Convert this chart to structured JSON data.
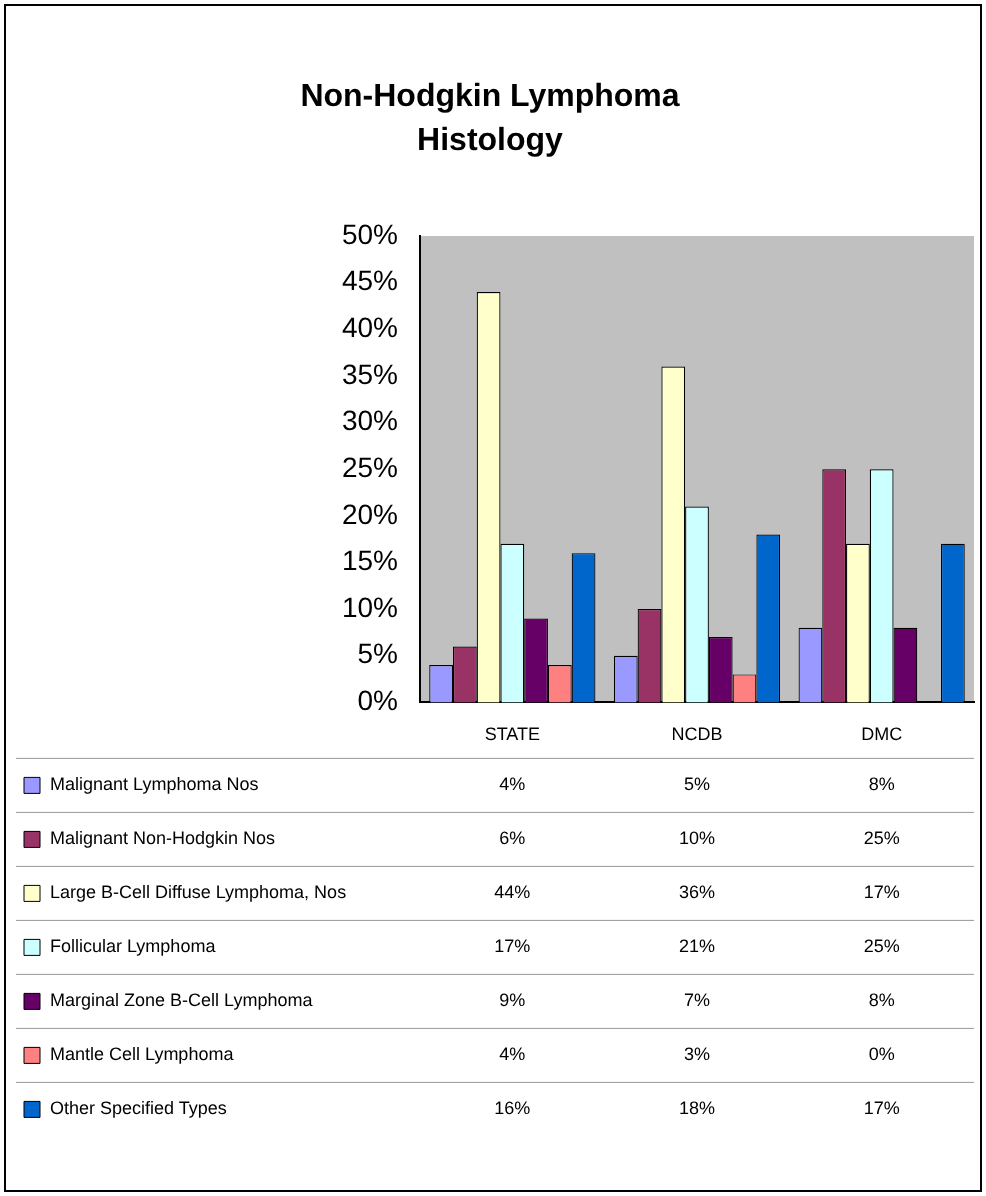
{
  "chart_data": {
    "type": "bar",
    "title": "Non-Hodgkin Lymphoma Histology",
    "categories": [
      "STATE",
      "NCDB",
      "DMC"
    ],
    "series": [
      {
        "name": "Malignant Lymphoma Nos",
        "color": "#9999ff",
        "values": [
          4,
          5,
          8
        ],
        "value_labels": [
          "4%",
          "5%",
          "8%"
        ]
      },
      {
        "name": "Malignant Non-Hodgkin Nos",
        "color": "#993366",
        "values": [
          6,
          10,
          25
        ],
        "value_labels": [
          "6%",
          "10%",
          "25%"
        ]
      },
      {
        "name": "Large B-Cell Diffuse Lymphoma, Nos",
        "color": "#ffffcc",
        "values": [
          44,
          36,
          17
        ],
        "value_labels": [
          "44%",
          "36%",
          "17%"
        ]
      },
      {
        "name": "Follicular Lymphoma",
        "color": "#ccffff",
        "values": [
          17,
          21,
          25
        ],
        "value_labels": [
          "17%",
          "21%",
          "25%"
        ]
      },
      {
        "name": "Marginal Zone B-Cell Lymphoma",
        "color": "#660066",
        "values": [
          9,
          7,
          8
        ],
        "value_labels": [
          "9%",
          "7%",
          "8%"
        ]
      },
      {
        "name": "Mantle Cell Lymphoma",
        "color": "#ff8080",
        "values": [
          4,
          3,
          0
        ],
        "value_labels": [
          "4%",
          "3%",
          "0%"
        ]
      },
      {
        "name": "Other Specified Types",
        "color": "#0066cc",
        "values": [
          16,
          18,
          17
        ],
        "value_labels": [
          "16%",
          "18%",
          "17%"
        ]
      }
    ],
    "ylim": [
      0,
      50
    ],
    "yticks": [
      {
        "value": 0,
        "label": "0%"
      },
      {
        "value": 5,
        "label": "5%"
      },
      {
        "value": 10,
        "label": "10%"
      },
      {
        "value": 15,
        "label": "15%"
      },
      {
        "value": 20,
        "label": "20%"
      },
      {
        "value": 25,
        "label": "25%"
      },
      {
        "value": 30,
        "label": "30%"
      },
      {
        "value": 35,
        "label": "35%"
      },
      {
        "value": 40,
        "label": "40%"
      },
      {
        "value": 45,
        "label": "45%"
      },
      {
        "value": 50,
        "label": "50%"
      }
    ],
    "grid": false,
    "legend": "bottom"
  }
}
